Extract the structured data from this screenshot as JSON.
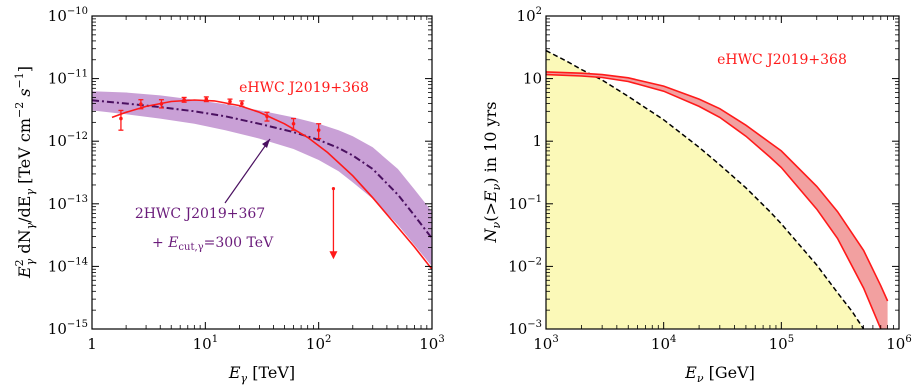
{
  "chart_data": [
    {
      "type": "line",
      "log_x": true,
      "log_y": true,
      "xlim": [
        1,
        1000
      ],
      "ylim": [
        1e-15,
        1e-10
      ],
      "x_ticks": [
        {
          "v": 1,
          "base": "1",
          "exp": ""
        },
        {
          "v": 10,
          "base": "10",
          "exp": "1"
        },
        {
          "v": 100,
          "base": "10",
          "exp": "2"
        },
        {
          "v": 1000,
          "base": "10",
          "exp": "3"
        }
      ],
      "y_ticks": [
        {
          "v": 1e-15,
          "base": "10",
          "exp": "−15"
        },
        {
          "v": 1e-14,
          "base": "10",
          "exp": "−14"
        },
        {
          "v": 1e-13,
          "base": "10",
          "exp": "−13"
        },
        {
          "v": 1e-12,
          "base": "10",
          "exp": "−12"
        },
        {
          "v": 1e-11,
          "base": "10",
          "exp": "−11"
        },
        {
          "v": 1e-10,
          "base": "10",
          "exp": "−10"
        }
      ],
      "xlabel": "E_γ [TeV]",
      "ylabel": "E_γ² dN_γ/dE_γ [TeV cm⁻² s⁻¹]",
      "band_color": "#c9a0d6",
      "ehwc_color": "#ff1a1a",
      "hwc2_color": "#4a1060",
      "annotations": {
        "ehwc_label": "eHWC J2019+368",
        "hwc2_label": "2HWC J2019+367",
        "cut_label": "+ E_cut,γ=300 TeV"
      },
      "band": {
        "x": [
          1,
          2,
          4,
          8,
          15,
          30,
          60,
          100,
          150,
          200,
          300,
          500,
          700,
          1000
        ],
        "upper": [
          6.3e-12,
          6e-12,
          5.4e-12,
          4.6e-12,
          3.9e-12,
          3.1e-12,
          2.4e-12,
          1.9e-12,
          1.5e-12,
          1.2e-12,
          8e-13,
          3.6e-13,
          1.7e-13,
          7.5e-14
        ],
        "lower": [
          3.1e-12,
          2.7e-12,
          2.3e-12,
          1.9e-12,
          1.5e-12,
          1.1e-12,
          7.5e-13,
          5e-13,
          3.3e-13,
          2.2e-13,
          1.2e-13,
          4.6e-14,
          2.2e-14,
          1e-14
        ]
      },
      "series": [
        {
          "key": "hwc2",
          "style": "dashdot",
          "x": [
            1,
            2,
            4,
            8,
            15,
            30,
            60,
            100,
            150,
            200,
            300,
            500,
            700,
            1000
          ],
          "y": [
            4.5e-12,
            4e-12,
            3.5e-12,
            3e-12,
            2.5e-12,
            1.9e-12,
            1.4e-12,
            1.05e-12,
            7.8e-13,
            5.9e-13,
            3.6e-13,
            1.4e-13,
            6.5e-14,
            2.8e-14
          ]
        },
        {
          "key": "ehwc",
          "style": "solid",
          "x": [
            1.5,
            2,
            3,
            5,
            8,
            12,
            20,
            30,
            50,
            80,
            120,
            200,
            300,
            500,
            700,
            1000
          ],
          "y": [
            2.4e-12,
            2.9e-12,
            3.6e-12,
            4.3e-12,
            4.55e-12,
            4.4e-12,
            3.7e-12,
            2.9e-12,
            1.9e-12,
            1.15e-12,
            6.6e-13,
            2.8e-13,
            1.25e-13,
            4.2e-14,
            2.05e-14,
            9e-15
          ]
        }
      ],
      "points": {
        "x": [
          1.8,
          2.7,
          4.1,
          6.5,
          10.2,
          16.5,
          21.0,
          35.0,
          60.0,
          100.0
        ],
        "y": [
          2.3e-12,
          3.9e-12,
          3.95e-12,
          4.6e-12,
          4.7e-12,
          4.3e-12,
          4e-12,
          2.5e-12,
          1.9e-12,
          1.5e-12
        ],
        "err_lo": [
          1.5e-12,
          3.3e-12,
          3.4e-12,
          4.2e-12,
          4.3e-12,
          3.9e-12,
          3.6e-12,
          2.1e-12,
          1.5e-12,
          1.1e-12
        ],
        "err_hi": [
          3.1e-12,
          4.6e-12,
          4.6e-12,
          5e-12,
          5.1e-12,
          4.7e-12,
          4.4e-12,
          2.9e-12,
          2.3e-12,
          1.9e-12
        ]
      },
      "upper_limit": {
        "x": 135,
        "y_from": 1.75e-13,
        "y_to": 1.3e-14
      }
    },
    {
      "type": "area",
      "log_x": true,
      "log_y": true,
      "xlim": [
        1000,
        1000000
      ],
      "ylim": [
        0.001,
        100
      ],
      "x_ticks": [
        {
          "v": 1000,
          "base": "10",
          "exp": "3"
        },
        {
          "v": 10000,
          "base": "10",
          "exp": "4"
        },
        {
          "v": 100000,
          "base": "10",
          "exp": "5"
        },
        {
          "v": 1000000,
          "base": "10",
          "exp": "6"
        }
      ],
      "y_ticks": [
        {
          "v": 0.001,
          "base": "10",
          "exp": "−3"
        },
        {
          "v": 0.01,
          "base": "10",
          "exp": "−2"
        },
        {
          "v": 0.1,
          "base": "10",
          "exp": "−1"
        },
        {
          "v": 1,
          "base": "1",
          "exp": ""
        },
        {
          "v": 10,
          "base": "10",
          "exp": ""
        },
        {
          "v": 100,
          "base": "10",
          "exp": "2"
        }
      ],
      "xlabel": "E_ν [GeV]",
      "ylabel": "N_ν(>E_ν) in 10 yrs",
      "bg_color": "#fbf9b8",
      "band_color": "#f2a0a0",
      "line_color": "#ff1a1a",
      "annotations": {
        "ehwc_label": "eHWC J2019+368"
      },
      "background_curve": {
        "style": "dashed",
        "x": [
          1000,
          1500,
          2000,
          3000,
          5000,
          8000,
          10000,
          20000,
          30000,
          50000,
          80000,
          100000,
          200000,
          300000,
          400000,
          500000
        ],
        "y": [
          28,
          19,
          14,
          9.5,
          5.2,
          2.9,
          2.2,
          0.8,
          0.42,
          0.18,
          0.075,
          0.048,
          0.0105,
          0.0038,
          0.0019,
          0.001
        ]
      },
      "band": {
        "x": [
          1000,
          2000,
          3000,
          5000,
          10000,
          20000,
          30000,
          50000,
          80000,
          100000,
          200000,
          300000,
          500000,
          700000,
          800000
        ],
        "upper": [
          12.8,
          12.2,
          11.6,
          10.3,
          7.6,
          4.7,
          3.3,
          1.8,
          0.95,
          0.7,
          0.19,
          0.075,
          0.018,
          0.0049,
          0.0028
        ],
        "lower": [
          11.6,
          11.0,
          10.4,
          9.0,
          6.3,
          3.6,
          2.4,
          1.2,
          0.56,
          0.38,
          0.082,
          0.028,
          0.0045,
          0.001,
          0.0005
        ]
      }
    }
  ]
}
